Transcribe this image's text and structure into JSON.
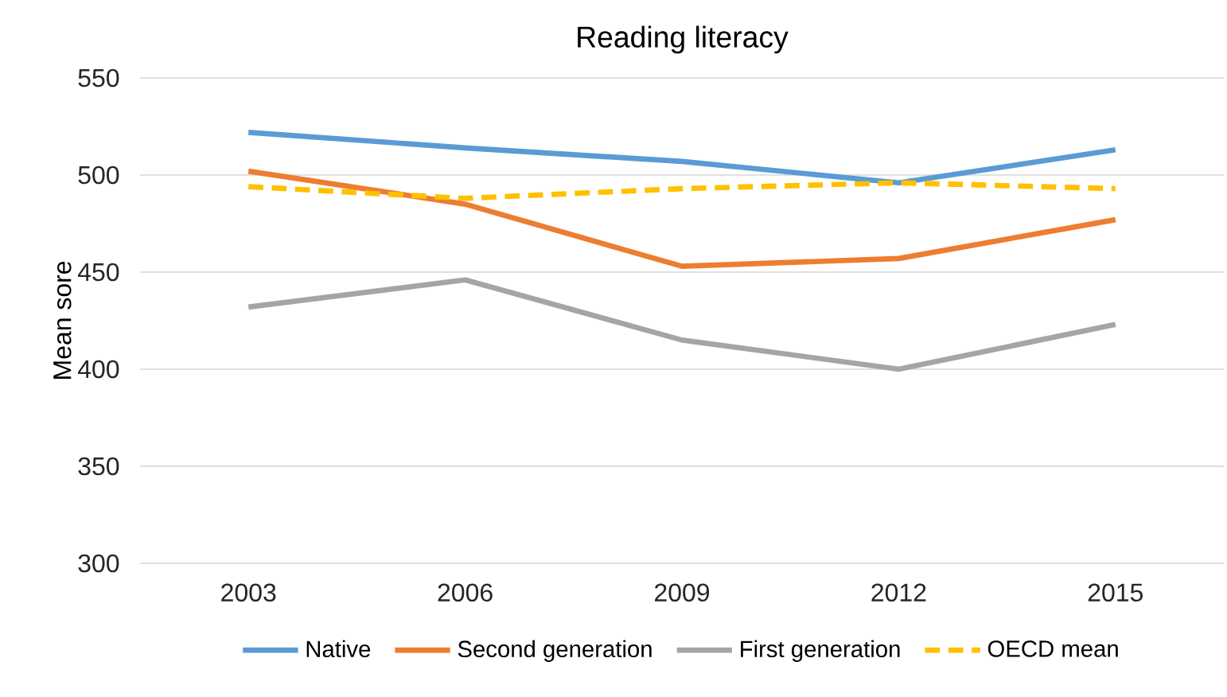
{
  "chart_data": {
    "type": "line",
    "title": "Reading literacy",
    "ylabel": "Mean sore",
    "categories": [
      "2003",
      "2006",
      "2009",
      "2012",
      "2015"
    ],
    "series": [
      {
        "name": "Native",
        "color": "#5b9bd5",
        "values": [
          522,
          514,
          507,
          496,
          513
        ]
      },
      {
        "name": "Second generation",
        "color": "#ed7d31",
        "values": [
          502,
          485,
          453,
          457,
          477
        ]
      },
      {
        "name": "First generation",
        "color": "#a5a5a5",
        "values": [
          432,
          446,
          415,
          400,
          423
        ]
      },
      {
        "name": "OECD mean",
        "color": "#ffc000",
        "values": [
          494,
          488,
          493,
          496,
          493
        ],
        "line_style": "dashed"
      }
    ],
    "ylim": [
      300,
      550
    ],
    "yticks": [
      300,
      350,
      400,
      450,
      500,
      550
    ],
    "grid": "y",
    "legend": "bottom",
    "marker": "none"
  }
}
